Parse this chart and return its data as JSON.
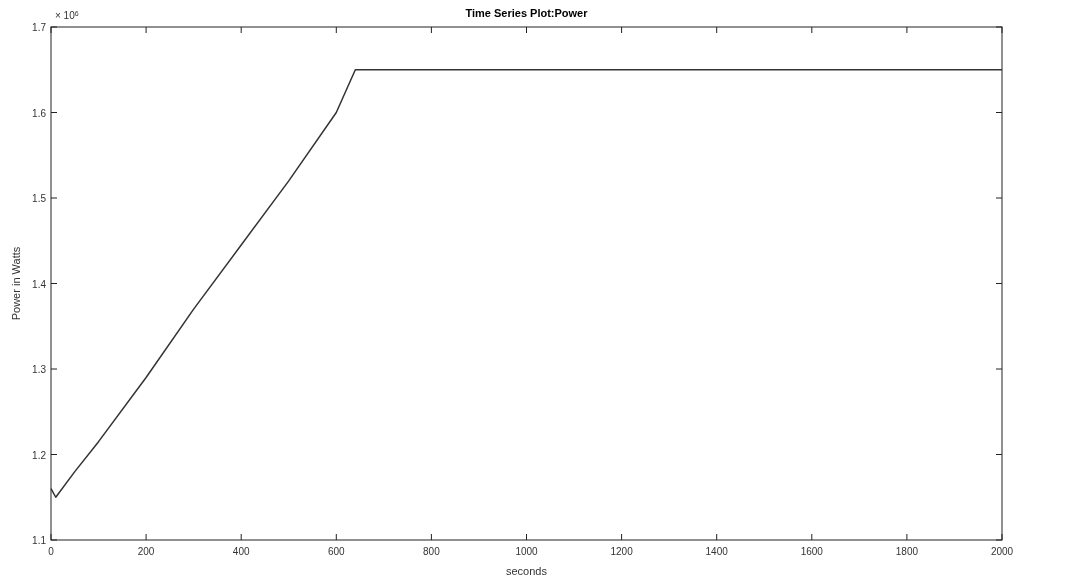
{
  "chart_data": {
    "type": "line",
    "title": "Time Series Plot:Power",
    "xlabel": "seconds",
    "ylabel": "Power in Watts",
    "annotations": [
      "× 10$^{6}$"
    ],
    "x": [
      0,
      10,
      50,
      100,
      200,
      300,
      400,
      500,
      600,
      640,
      2000
    ],
    "series": [
      {
        "color": "#333333",
        "values": [
          1.16,
          1.15,
          1.18,
          1.215,
          1.29,
          1.37,
          1.445,
          1.52,
          1.6,
          1.65,
          1.65
        ]
      }
    ],
    "xlim": [
      0,
      2000
    ],
    "xticks": [
      0,
      200,
      400,
      600,
      800,
      1000,
      1200,
      1400,
      1600,
      1800,
      2000
    ],
    "ylim": [
      1.1,
      1.7
    ],
    "yticks": [
      1.1,
      1.2,
      1.3,
      1.4,
      1.5,
      1.6,
      1.7
    ],
    "grid": false,
    "marker": "none",
    "line_style": "solid"
  }
}
